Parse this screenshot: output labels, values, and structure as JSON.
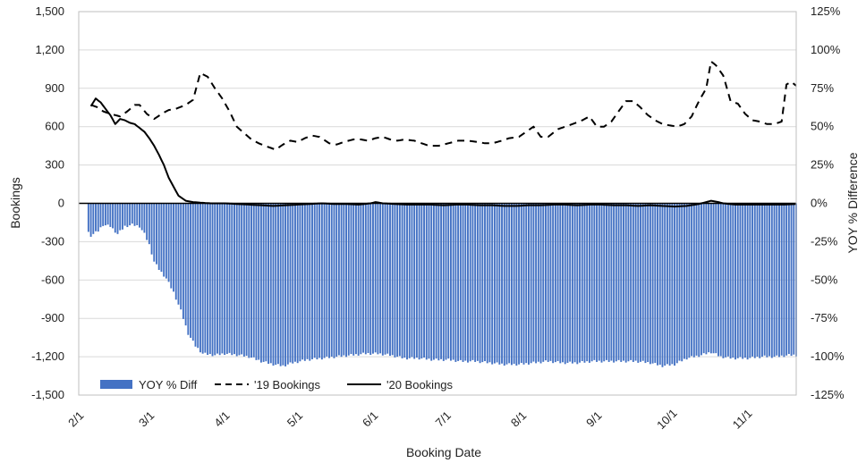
{
  "chart_data": {
    "type": "bar",
    "xlabel": "Booking Date",
    "ylabel_left": "Bookings",
    "ylabel_right": "YOY % Difference",
    "ylim_left": [
      -1500,
      1500
    ],
    "ylim_right": [
      -125,
      125
    ],
    "left_ticks": [
      "1,500",
      "1,200",
      "900",
      "600",
      "300",
      "0",
      "-300",
      "-600",
      "-900",
      "-1,200",
      "-1,500"
    ],
    "left_tick_values": [
      1500,
      1200,
      900,
      600,
      300,
      0,
      -300,
      -600,
      -900,
      -1200,
      -1500
    ],
    "right_ticks": [
      "125%",
      "100%",
      "75%",
      "50%",
      "25%",
      "0%",
      "-25%",
      "-50%",
      "-75%",
      "-100%",
      "-125%"
    ],
    "right_tick_values": [
      125,
      100,
      75,
      50,
      25,
      0,
      -25,
      -50,
      -75,
      -100,
      -125
    ],
    "x_ticks": [
      "2/1",
      "3/1",
      "4/1",
      "5/1",
      "6/1",
      "7/1",
      "8/1",
      "9/1",
      "10/1",
      "11/1"
    ],
    "x_tick_days": [
      0,
      29,
      60,
      90,
      121,
      151,
      182,
      213,
      243,
      274
    ],
    "x_range_days": [
      0,
      295
    ],
    "grid": "horizontal",
    "legend_position": "bottom-inside",
    "legend": [
      "YOY % Diff",
      "'19 Bookings",
      "'20 Bookings"
    ],
    "colors": {
      "bar": "#4472C4",
      "line2019": "#000000",
      "line2020": "#000000",
      "grid": "#d9d9d9"
    },
    "series": [
      {
        "name": "YOY % Diff",
        "kind": "bar",
        "axis": "right",
        "keypoints": [
          [
            0,
            -14
          ],
          [
            3,
            -17
          ],
          [
            5,
            -21
          ],
          [
            8,
            -18
          ],
          [
            10,
            -14
          ],
          [
            13,
            -15
          ],
          [
            16,
            -20
          ],
          [
            19,
            -15
          ],
          [
            22,
            -14
          ],
          [
            25,
            -15
          ],
          [
            27,
            -20
          ],
          [
            29,
            -27
          ],
          [
            31,
            -38
          ],
          [
            33,
            -43
          ],
          [
            36,
            -49
          ],
          [
            39,
            -58
          ],
          [
            42,
            -70
          ],
          [
            45,
            -85
          ],
          [
            48,
            -93
          ],
          [
            51,
            -98
          ],
          [
            56,
            -99
          ],
          [
            60,
            -98
          ],
          [
            66,
            -99
          ],
          [
            70,
            -100
          ],
          [
            75,
            -103
          ],
          [
            80,
            -105
          ],
          [
            84,
            -106
          ],
          [
            88,
            -104
          ],
          [
            94,
            -102
          ],
          [
            100,
            -101
          ],
          [
            106,
            -100
          ],
          [
            112,
            -99
          ],
          [
            118,
            -98
          ],
          [
            123,
            -98
          ],
          [
            128,
            -99
          ],
          [
            134,
            -101
          ],
          [
            140,
            -101
          ],
          [
            146,
            -102
          ],
          [
            152,
            -102
          ],
          [
            157,
            -103
          ],
          [
            163,
            -103
          ],
          [
            169,
            -104
          ],
          [
            175,
            -105
          ],
          [
            181,
            -105
          ],
          [
            187,
            -104
          ],
          [
            193,
            -103
          ],
          [
            199,
            -104
          ],
          [
            205,
            -104
          ],
          [
            211,
            -103
          ],
          [
            217,
            -103
          ],
          [
            223,
            -103
          ],
          [
            229,
            -103
          ],
          [
            235,
            -104
          ],
          [
            240,
            -106
          ],
          [
            245,
            -105
          ],
          [
            250,
            -101
          ],
          [
            256,
            -99
          ],
          [
            260,
            -97
          ],
          [
            264,
            -100
          ],
          [
            269,
            -101
          ],
          [
            275,
            -101
          ],
          [
            281,
            -100
          ],
          [
            287,
            -100
          ],
          [
            292,
            -99
          ],
          [
            295,
            -99
          ]
        ]
      },
      {
        "name": "'19 Bookings",
        "kind": "line",
        "dash": true,
        "axis": "left",
        "keypoints": [
          [
            0,
            720
          ],
          [
            3,
            730
          ],
          [
            5,
            770
          ],
          [
            8,
            750
          ],
          [
            10,
            720
          ],
          [
            13,
            700
          ],
          [
            17,
            680
          ],
          [
            20,
            720
          ],
          [
            23,
            770
          ],
          [
            25,
            770
          ],
          [
            28,
            700
          ],
          [
            31,
            660
          ],
          [
            35,
            710
          ],
          [
            37,
            730
          ],
          [
            40,
            740
          ],
          [
            44,
            770
          ],
          [
            47,
            810
          ],
          [
            50,
            1020
          ],
          [
            53,
            990
          ],
          [
            56,
            900
          ],
          [
            59,
            820
          ],
          [
            62,
            720
          ],
          [
            65,
            600
          ],
          [
            68,
            550
          ],
          [
            71,
            500
          ],
          [
            74,
            470
          ],
          [
            78,
            440
          ],
          [
            81,
            420
          ],
          [
            84,
            460
          ],
          [
            87,
            490
          ],
          [
            90,
            480
          ],
          [
            93,
            510
          ],
          [
            96,
            530
          ],
          [
            99,
            520
          ],
          [
            103,
            470
          ],
          [
            106,
            460
          ],
          [
            109,
            480
          ],
          [
            113,
            500
          ],
          [
            116,
            500
          ],
          [
            119,
            490
          ],
          [
            122,
            510
          ],
          [
            125,
            520
          ],
          [
            128,
            500
          ],
          [
            131,
            490
          ],
          [
            134,
            500
          ],
          [
            138,
            490
          ],
          [
            141,
            470
          ],
          [
            144,
            450
          ],
          [
            148,
            450
          ],
          [
            152,
            470
          ],
          [
            156,
            490
          ],
          [
            160,
            490
          ],
          [
            164,
            480
          ],
          [
            167,
            470
          ],
          [
            170,
            470
          ],
          [
            174,
            490
          ],
          [
            177,
            510
          ],
          [
            181,
            520
          ],
          [
            184,
            560
          ],
          [
            187,
            600
          ],
          [
            190,
            520
          ],
          [
            193,
            520
          ],
          [
            197,
            580
          ],
          [
            200,
            600
          ],
          [
            203,
            620
          ],
          [
            207,
            650
          ],
          [
            210,
            680
          ],
          [
            213,
            600
          ],
          [
            216,
            600
          ],
          [
            219,
            640
          ],
          [
            222,
            720
          ],
          [
            225,
            800
          ],
          [
            228,
            800
          ],
          [
            231,
            750
          ],
          [
            234,
            690
          ],
          [
            237,
            650
          ],
          [
            240,
            620
          ],
          [
            243,
            610
          ],
          [
            246,
            600
          ],
          [
            249,
            620
          ],
          [
            252,
            680
          ],
          [
            255,
            800
          ],
          [
            258,
            900
          ],
          [
            260,
            1110
          ],
          [
            262,
            1080
          ],
          [
            265,
            1000
          ],
          [
            268,
            800
          ],
          [
            271,
            780
          ],
          [
            274,
            700
          ],
          [
            277,
            650
          ],
          [
            280,
            640
          ],
          [
            283,
            620
          ],
          [
            286,
            620
          ],
          [
            289,
            640
          ],
          [
            291,
            930
          ],
          [
            293,
            950
          ],
          [
            295,
            920
          ]
        ]
      },
      {
        "name": "'20 Bookings",
        "kind": "line",
        "dash": false,
        "axis": "left",
        "keypoints": [
          [
            0,
            730
          ],
          [
            3,
            720
          ],
          [
            5,
            760
          ],
          [
            7,
            820
          ],
          [
            9,
            790
          ],
          [
            11,
            740
          ],
          [
            13,
            690
          ],
          [
            15,
            620
          ],
          [
            17,
            660
          ],
          [
            19,
            650
          ],
          [
            21,
            630
          ],
          [
            23,
            620
          ],
          [
            25,
            590
          ],
          [
            27,
            560
          ],
          [
            29,
            510
          ],
          [
            31,
            450
          ],
          [
            33,
            380
          ],
          [
            35,
            300
          ],
          [
            37,
            200
          ],
          [
            39,
            130
          ],
          [
            41,
            60
          ],
          [
            44,
            20
          ],
          [
            47,
            10
          ],
          [
            50,
            5
          ],
          [
            55,
            0
          ],
          [
            60,
            0
          ],
          [
            65,
            -5
          ],
          [
            70,
            -10
          ],
          [
            75,
            -15
          ],
          [
            80,
            -20
          ],
          [
            85,
            -15
          ],
          [
            90,
            -10
          ],
          [
            95,
            -5
          ],
          [
            100,
            0
          ],
          [
            105,
            -5
          ],
          [
            110,
            -5
          ],
          [
            115,
            -10
          ],
          [
            120,
            0
          ],
          [
            122,
            10
          ],
          [
            125,
            0
          ],
          [
            130,
            -5
          ],
          [
            135,
            -10
          ],
          [
            140,
            -10
          ],
          [
            145,
            -10
          ],
          [
            150,
            -15
          ],
          [
            155,
            -10
          ],
          [
            160,
            -10
          ],
          [
            165,
            -15
          ],
          [
            170,
            -15
          ],
          [
            175,
            -20
          ],
          [
            180,
            -20
          ],
          [
            185,
            -15
          ],
          [
            190,
            -15
          ],
          [
            195,
            -10
          ],
          [
            200,
            -10
          ],
          [
            205,
            -15
          ],
          [
            210,
            -10
          ],
          [
            215,
            -10
          ],
          [
            220,
            -15
          ],
          [
            225,
            -15
          ],
          [
            230,
            -20
          ],
          [
            235,
            -15
          ],
          [
            240,
            -20
          ],
          [
            245,
            -25
          ],
          [
            250,
            -20
          ],
          [
            255,
            -5
          ],
          [
            258,
            10
          ],
          [
            260,
            20
          ],
          [
            263,
            10
          ],
          [
            265,
            0
          ],
          [
            270,
            -10
          ],
          [
            275,
            -10
          ],
          [
            280,
            -10
          ],
          [
            285,
            -10
          ],
          [
            290,
            -10
          ],
          [
            295,
            -5
          ]
        ]
      }
    ]
  }
}
